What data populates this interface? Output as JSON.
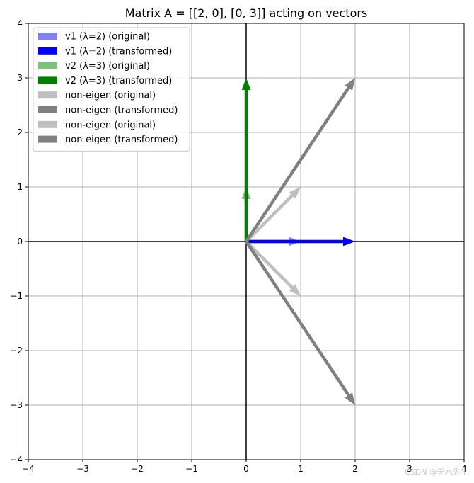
{
  "chart_data": {
    "type": "vector-field",
    "title": "Matrix A = [[2, 0], [0, 3]] acting on vectors",
    "xlabel": "",
    "ylabel": "",
    "xlim": [
      -4,
      4
    ],
    "ylim": [
      -4,
      4
    ],
    "xticks": [
      -4,
      -3,
      -2,
      -1,
      0,
      1,
      2,
      3,
      4
    ],
    "yticks": [
      -4,
      -3,
      -2,
      -1,
      0,
      1,
      2,
      3,
      4
    ],
    "xtick_labels": [
      "−4",
      "−3",
      "−2",
      "−1",
      "0",
      "1",
      "2",
      "3",
      "4"
    ],
    "ytick_labels": [
      "−4",
      "−3",
      "−2",
      "−1",
      "0",
      "1",
      "2",
      "3",
      "4"
    ],
    "grid": true,
    "legend_position": "top-left",
    "series": [
      {
        "name": "v1 (λ=2) (original)",
        "vector": [
          1,
          0
        ],
        "color": "#0000ff",
        "alpha": 0.5
      },
      {
        "name": "v1 (λ=2) (transformed)",
        "vector": [
          2,
          0
        ],
        "color": "#0000ff",
        "alpha": 1
      },
      {
        "name": "v2 (λ=3) (original)",
        "vector": [
          0,
          1
        ],
        "color": "#008000",
        "alpha": 0.5
      },
      {
        "name": "v2 (λ=3) (transformed)",
        "vector": [
          0,
          3
        ],
        "color": "#008000",
        "alpha": 1
      },
      {
        "name": "non-eigen (original)",
        "vector": [
          1,
          1
        ],
        "color": "#808080",
        "alpha": 0.5
      },
      {
        "name": "non-eigen (transformed)",
        "vector": [
          2,
          3
        ],
        "color": "#808080",
        "alpha": 1
      },
      {
        "name": "non-eigen (original)",
        "vector": [
          1,
          -1
        ],
        "color": "#808080",
        "alpha": 0.5
      },
      {
        "name": "non-eigen (transformed)",
        "vector": [
          2,
          -3
        ],
        "color": "#808080",
        "alpha": 1
      }
    ]
  },
  "watermark": "CSDN @无水先生"
}
